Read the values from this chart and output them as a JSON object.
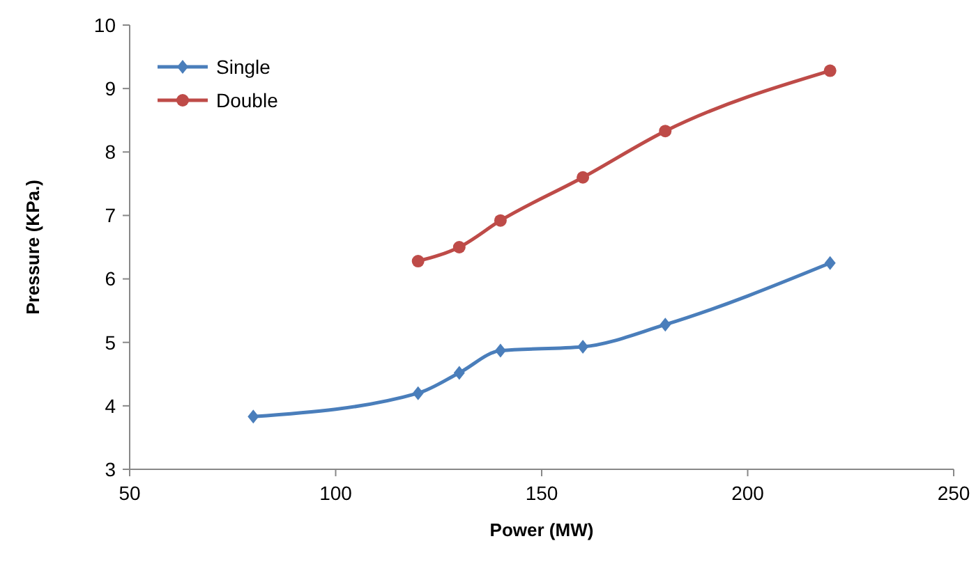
{
  "chart_data": {
    "type": "line",
    "xlabel": "Power (MW)",
    "ylabel": "Pressure (KPa.)",
    "xlim": [
      50,
      250
    ],
    "xticks": [
      50,
      100,
      150,
      200,
      250
    ],
    "ylim": [
      3,
      10
    ],
    "yticks": [
      3,
      4,
      5,
      6,
      7,
      8,
      9,
      10
    ],
    "grid": false,
    "legend": "top left",
    "line_style": "solid",
    "series": [
      {
        "name": "Single",
        "color": "#4a7ebb",
        "marker": "diamond",
        "x": [
          80,
          120,
          130,
          140,
          160,
          180,
          220
        ],
        "values": [
          3.83,
          4.2,
          4.52,
          4.87,
          4.93,
          5.28,
          6.25
        ]
      },
      {
        "name": "Double",
        "color": "#be4b48",
        "marker": "circle",
        "x": [
          120,
          130,
          140,
          160,
          180,
          220
        ],
        "values": [
          6.28,
          6.5,
          6.92,
          7.6,
          8.33,
          9.28
        ]
      }
    ]
  }
}
